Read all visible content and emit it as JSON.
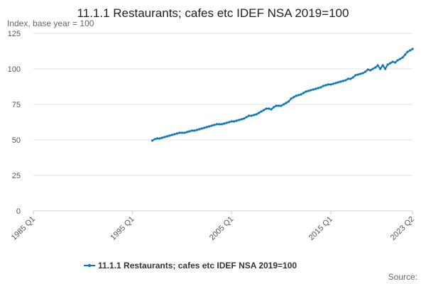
{
  "chart_data": {
    "type": "line",
    "title": "11.1.1 Restaurants; cafes etc IDEF NSA 2019=100",
    "y_label": "Index, base year = 100",
    "source": "Source:",
    "categories": [
      "1985 Q1",
      null,
      null,
      null,
      null,
      null,
      null,
      null,
      null,
      null,
      null,
      null,
      null,
      null,
      null,
      null,
      null,
      null,
      null,
      null,
      null,
      null,
      null,
      null,
      null,
      null,
      null,
      null,
      null,
      null,
      null,
      null,
      null,
      null,
      null,
      null,
      null,
      null,
      null,
      null,
      "1995 Q1",
      null,
      null,
      null,
      null,
      null,
      null,
      null,
      null,
      null,
      null,
      null,
      null,
      null,
      null,
      null,
      null,
      null,
      null,
      null,
      null,
      null,
      null,
      null,
      null,
      null,
      null,
      null,
      null,
      null,
      null,
      null,
      null,
      null,
      null,
      null,
      null,
      null,
      null,
      null,
      "2005 Q1",
      null,
      null,
      null,
      null,
      null,
      null,
      null,
      null,
      null,
      null,
      null,
      null,
      null,
      null,
      null,
      null,
      null,
      null,
      null,
      null,
      null,
      null,
      null,
      null,
      null,
      null,
      null,
      null,
      null,
      null,
      null,
      null,
      null,
      null,
      null,
      null,
      null,
      null,
      null,
      "2015 Q1",
      null,
      null,
      null,
      null,
      null,
      null,
      null,
      null,
      null,
      null,
      null,
      null,
      null,
      null,
      null,
      null,
      null,
      null,
      null,
      null,
      null,
      null,
      null,
      null,
      null,
      null,
      null,
      null,
      null,
      null,
      null,
      null,
      "2023 Q2"
    ],
    "series": [
      {
        "name": "11.1.1 Restaurants; cafes etc IDEF NSA 2019=100",
        "color": "#0b76b8",
        "values": [
          null,
          null,
          null,
          null,
          null,
          null,
          null,
          null,
          null,
          null,
          null,
          null,
          null,
          null,
          null,
          null,
          null,
          null,
          null,
          null,
          null,
          null,
          null,
          null,
          null,
          null,
          null,
          null,
          null,
          null,
          null,
          null,
          null,
          null,
          null,
          null,
          null,
          null,
          null,
          null,
          null,
          null,
          null,
          null,
          null,
          null,
          null,
          null,
          49.5,
          50.5,
          51,
          51,
          51.5,
          52,
          52.5,
          53,
          53.5,
          54,
          54.5,
          55,
          55,
          55,
          55.5,
          56,
          56.5,
          56.5,
          57,
          57.5,
          58,
          58.5,
          59,
          59.5,
          60,
          60.5,
          61,
          61,
          61,
          61.5,
          62,
          62.5,
          63,
          63,
          63.5,
          64,
          64.5,
          65,
          66,
          67,
          67,
          67.5,
          68,
          69,
          70,
          71,
          72,
          72,
          71.5,
          73,
          74,
          74,
          74,
          75,
          76,
          77,
          79,
          80,
          81,
          81.5,
          82,
          83,
          84,
          84.5,
          85,
          85.5,
          86,
          86.5,
          87,
          88,
          88.5,
          89,
          89,
          89.5,
          90,
          90.5,
          91,
          91.5,
          92,
          93,
          93,
          94,
          95.5,
          96,
          96.5,
          97,
          98,
          99.5,
          99,
          100,
          101,
          102.5,
          100,
          102.5,
          100,
          103,
          104,
          105,
          104.5,
          106,
          107,
          108,
          110,
          112,
          113,
          114
        ]
      }
    ],
    "ylim": [
      0,
      125
    ],
    "yticks": [
      0,
      25,
      50,
      75,
      100,
      125
    ],
    "grid": true,
    "legend": "bottom"
  }
}
